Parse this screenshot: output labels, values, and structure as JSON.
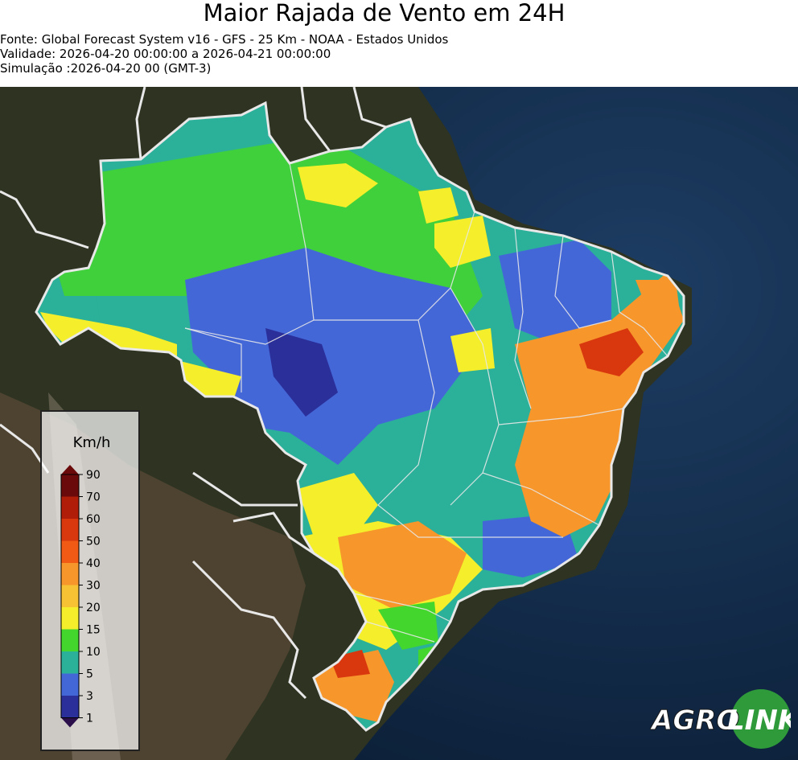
{
  "header": {
    "title": "Maior Rajada de Vento em 24H",
    "source": "Fonte: Global Forecast System v16 - GFS - 25 Km - NOAA - Estados Unidos",
    "validity": "Validade: 2026-04-20 00:00:00 a 2026-04-21 00:00:00",
    "simulation": "Simulação :2026-04-20 00 (GMT-3)"
  },
  "legend": {
    "unit": "Km/h",
    "levels": [
      {
        "label": "90",
        "color": "#6b0a0a"
      },
      {
        "label": "70",
        "color": "#b01e0a"
      },
      {
        "label": "60",
        "color": "#d9370e"
      },
      {
        "label": "50",
        "color": "#f05a14"
      },
      {
        "label": "40",
        "color": "#f7962b"
      },
      {
        "label": "30",
        "color": "#f7c234"
      },
      {
        "label": "20",
        "color": "#f4ef2a"
      },
      {
        "label": "15",
        "color": "#43d62c"
      },
      {
        "label": "10",
        "color": "#2bb09a"
      },
      {
        "label": "5",
        "color": "#4467d8"
      },
      {
        "label": "3",
        "color": "#2a2f9a"
      },
      {
        "label": "1",
        "color": "#2b0f4a"
      }
    ]
  },
  "logo": {
    "text_left": "AGRO",
    "text_right": "LINK"
  },
  "colors": {
    "ocean": "#0f2a4a",
    "land": "#3a3a24",
    "border": "#e8e8e8"
  }
}
